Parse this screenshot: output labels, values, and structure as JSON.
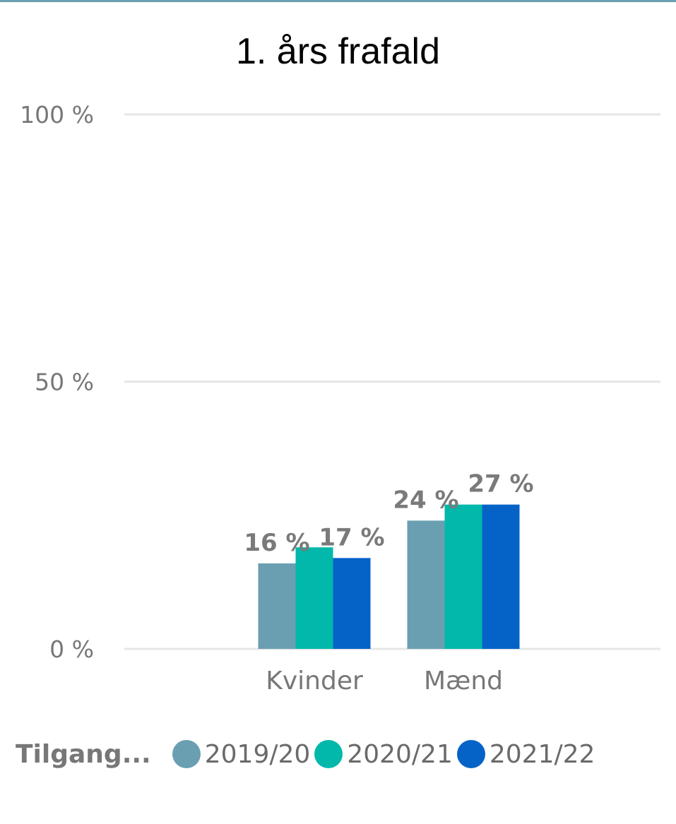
{
  "chart_data": {
    "type": "bar",
    "title": "1. års frafald",
    "categories": [
      "Kvinder",
      "Mænd"
    ],
    "series": [
      {
        "name": "2019/20",
        "color": "#6a9fb2",
        "values": [
          16,
          24
        ]
      },
      {
        "name": "2020/21",
        "color": "#01b8aa",
        "values": [
          19,
          27
        ]
      },
      {
        "name": "2021/22",
        "color": "#0563c8",
        "values": [
          17,
          27
        ]
      }
    ],
    "data_labels": [
      [
        "16 %",
        "24 %"
      ],
      [
        "",
        ""
      ],
      [
        "17 %",
        "27 %"
      ]
    ],
    "ylim": [
      0,
      100
    ],
    "yticks": [
      0,
      50,
      100
    ],
    "ytick_labels": [
      "0 %",
      "50 %",
      "100 %"
    ],
    "grid": true,
    "legend": {
      "title": "Tilgang...",
      "placement": "bottom-left"
    }
  }
}
